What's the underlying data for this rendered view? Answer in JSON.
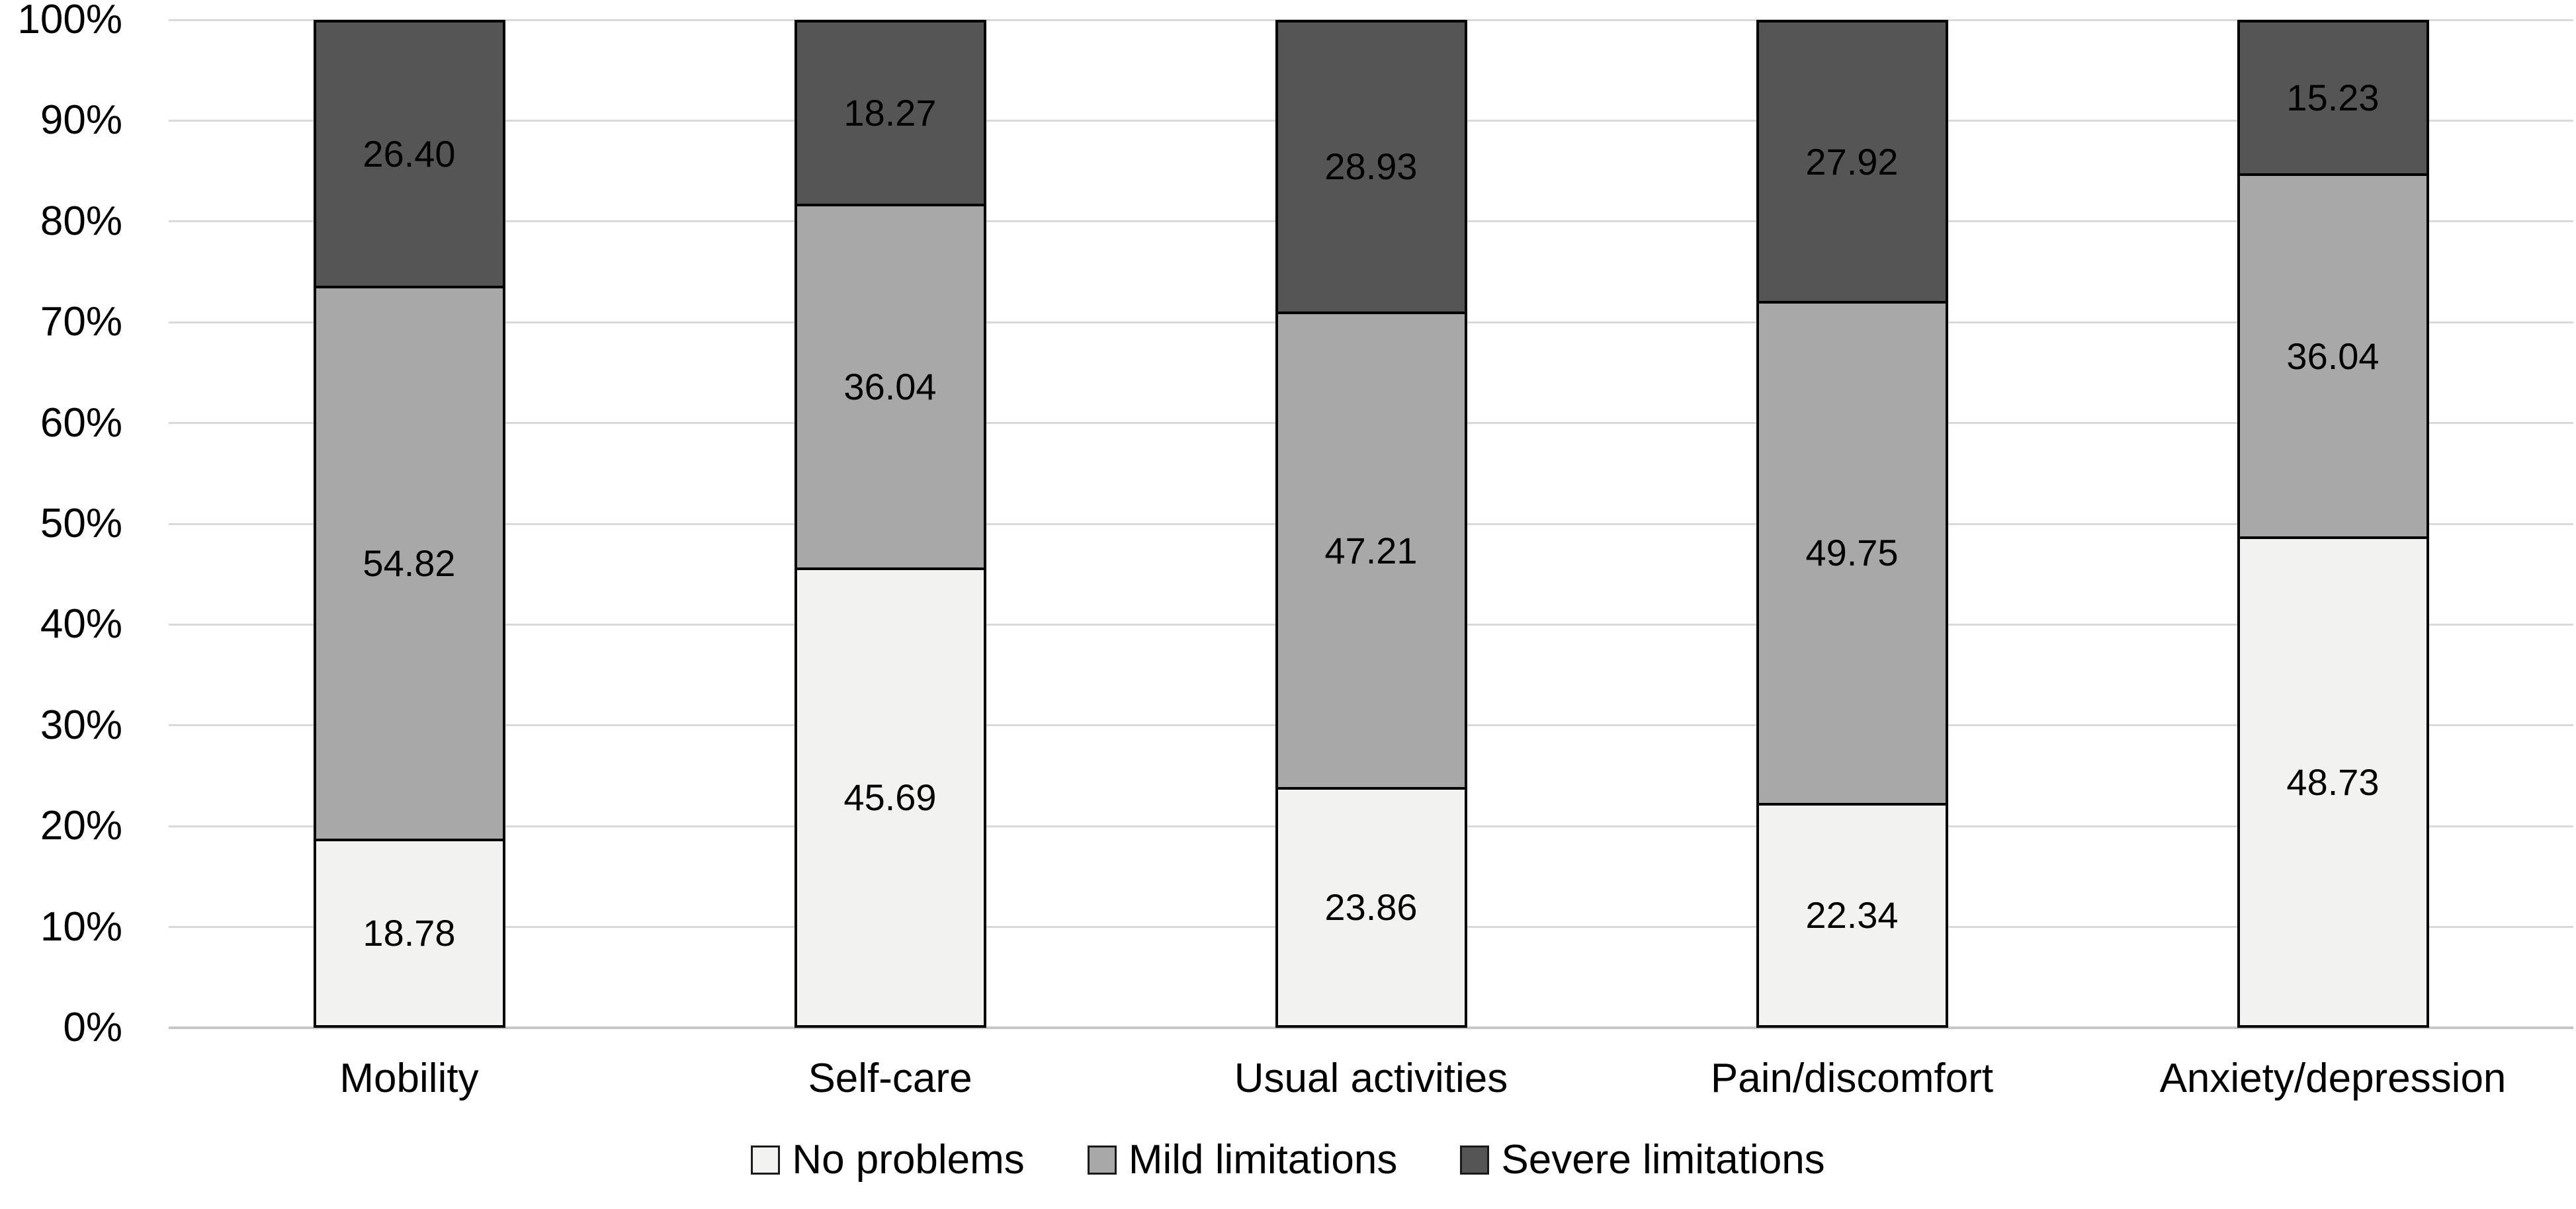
{
  "chart_data": {
    "type": "bar",
    "stacked": true,
    "units": "percent",
    "categories": [
      "Mobility",
      "Self-care",
      "Usual activities",
      "Pain/discomfort",
      "Anxiety/depression"
    ],
    "series": [
      {
        "name": "No problems",
        "color": "#f2f2f0",
        "values": [
          18.78,
          45.69,
          23.86,
          22.34,
          48.73
        ],
        "labels": [
          "18.78",
          "45.69",
          "23.86",
          "22.34",
          "48.73"
        ]
      },
      {
        "name": "Mild limitations",
        "color": "#a8a8a8",
        "values": [
          54.82,
          36.04,
          47.21,
          49.75,
          36.04
        ],
        "labels": [
          "54.82",
          "36.04",
          "47.21",
          "49.75",
          "36.04"
        ]
      },
      {
        "name": "Severe limitations",
        "color": "#555555",
        "values": [
          26.4,
          18.27,
          28.93,
          27.92,
          15.23
        ],
        "labels": [
          "26.40",
          "18.27",
          "28.93",
          "27.92",
          "15.23"
        ]
      }
    ],
    "y_axis": {
      "min": 0,
      "max": 100,
      "step": 10,
      "tick_values": [
        0,
        10,
        20,
        30,
        40,
        50,
        60,
        70,
        80,
        90,
        100
      ],
      "tick_labels": [
        "0%",
        "10%",
        "20%",
        "30%",
        "40%",
        "50%",
        "60%",
        "70%",
        "80%",
        "90%",
        "100%"
      ]
    },
    "legend": {
      "position": "bottom",
      "entries": [
        "No problems",
        "Mild limitations",
        "Severe limitations"
      ]
    },
    "grid": true
  },
  "style": {
    "background": "#ffffff",
    "text_color": "#000000",
    "gridline_color": "#d9d9d9",
    "axis_line_color": "#c6c6c6",
    "bar_border_color": "#000000"
  }
}
